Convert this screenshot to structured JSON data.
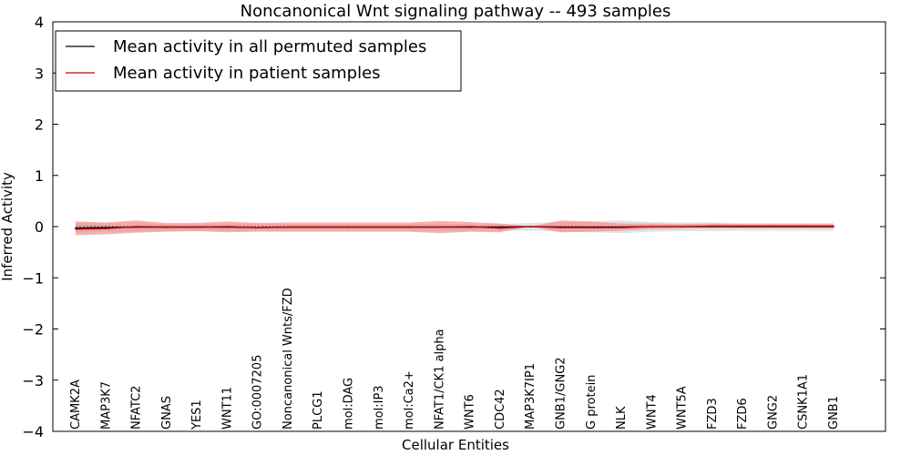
{
  "chart_data": {
    "type": "line",
    "title": "Noncanonical Wnt signaling pathway -- 493 samples",
    "xlabel": "Cellular Entities",
    "ylabel": "Inferred Activity",
    "ylim": [
      -4,
      4
    ],
    "yticks": [
      4,
      3,
      2,
      1,
      0,
      -1,
      -2,
      -3,
      -4
    ],
    "ytick_labels": [
      "4",
      "3",
      "2",
      "1",
      "0",
      "−1",
      "−2",
      "−3",
      "−4"
    ],
    "grid": false,
    "legend_position": "top-left",
    "categories": [
      "CAMK2A",
      "MAP3K7",
      "NFATC2",
      "GNAS",
      "YES1",
      "WNT11",
      "GO:0007205",
      "Noncanonical Wnts/FZD",
      "PLCG1",
      "mol:DAG",
      "mol:IP3",
      "mol:Ca2+",
      "NFAT1/CK1 alpha",
      "WNT6",
      "CDC42",
      "MAP3K7IP1",
      "GNB1/GNG2",
      "G protein",
      "NLK",
      "WNT4",
      "WNT5A",
      "FZD3",
      "FZD6",
      "GNG2",
      "CSNK1A1",
      "GNB1"
    ],
    "series": [
      {
        "name": "Mean activity in all permuted samples",
        "color": "#000000",
        "values": [
          -0.03,
          -0.02,
          -0.01,
          -0.01,
          -0.01,
          -0.01,
          -0.02,
          -0.01,
          -0.01,
          -0.01,
          -0.01,
          -0.01,
          -0.01,
          -0.01,
          -0.01,
          0.0,
          -0.01,
          -0.01,
          -0.01,
          0.0,
          0.0,
          0.0,
          0.0,
          0.0,
          0.0,
          0.0
        ],
        "band_upper": [
          0.08,
          0.06,
          0.07,
          0.05,
          0.05,
          0.06,
          0.05,
          0.05,
          0.05,
          0.05,
          0.05,
          0.05,
          0.06,
          0.05,
          0.05,
          0.07,
          0.09,
          0.1,
          0.12,
          0.09,
          0.08,
          0.08,
          0.07,
          0.07,
          0.07,
          0.07
        ],
        "band_lower": [
          -0.12,
          -0.1,
          -0.1,
          -0.08,
          -0.08,
          -0.09,
          -0.08,
          -0.08,
          -0.08,
          -0.08,
          -0.08,
          -0.08,
          -0.09,
          -0.08,
          -0.08,
          -0.08,
          -0.1,
          -0.11,
          -0.13,
          -0.1,
          -0.09,
          -0.09,
          -0.08,
          -0.08,
          -0.08,
          -0.08
        ],
        "band_color": "#cccccc"
      },
      {
        "name": "Mean activity in patient samples",
        "color": "#cc0000",
        "values": [
          -0.05,
          -0.04,
          0.0,
          -0.01,
          -0.01,
          0.0,
          -0.02,
          -0.01,
          -0.01,
          -0.01,
          -0.01,
          -0.01,
          -0.01,
          0.0,
          -0.03,
          0.0,
          -0.02,
          -0.02,
          -0.02,
          0.0,
          0.0,
          0.01,
          0.01,
          0.01,
          0.01,
          0.01
        ],
        "band_upper": [
          0.1,
          0.08,
          0.12,
          0.07,
          0.07,
          0.1,
          0.07,
          0.08,
          0.08,
          0.08,
          0.08,
          0.08,
          0.11,
          0.09,
          0.06,
          0.0,
          0.12,
          0.1,
          0.06,
          0.06,
          0.05,
          0.06,
          0.05,
          0.05,
          0.05,
          0.05
        ],
        "band_lower": [
          -0.17,
          -0.15,
          -0.12,
          -0.1,
          -0.09,
          -0.11,
          -0.1,
          -0.1,
          -0.1,
          -0.1,
          -0.1,
          -0.1,
          -0.13,
          -0.1,
          -0.11,
          0.0,
          -0.11,
          -0.1,
          -0.08,
          -0.05,
          -0.04,
          -0.03,
          -0.03,
          -0.03,
          -0.03,
          -0.03
        ],
        "band_color": "#f08080"
      }
    ]
  }
}
